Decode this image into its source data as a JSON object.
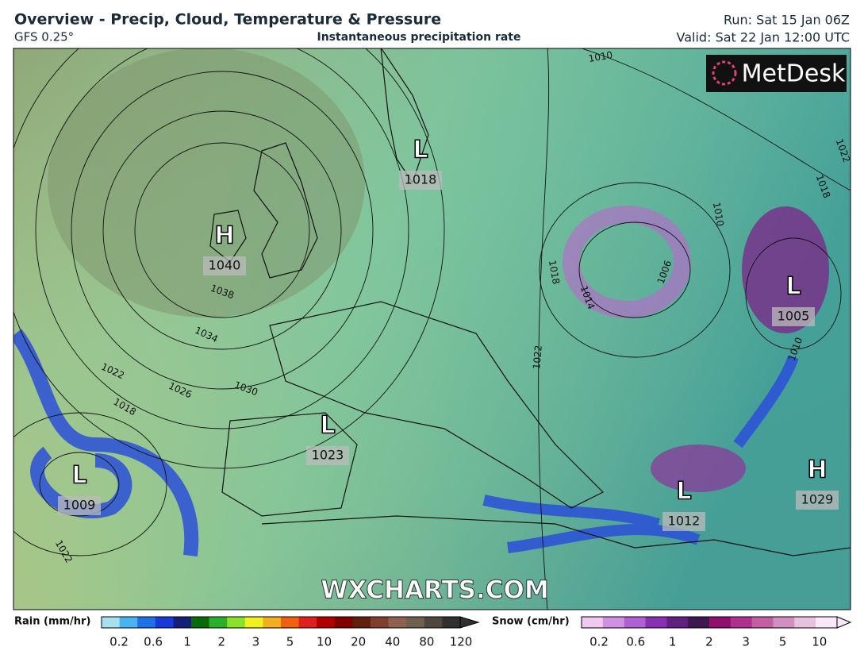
{
  "header": {
    "title": "Overview - Precip, Cloud, Temperature & Pressure",
    "model": "GFS 0.25°",
    "subtitle": "Instantaneous precipitation rate",
    "run": "Run: Sat 15 Jan 06Z",
    "valid": "Valid: Sat 22 Jan 12:00 UTC"
  },
  "map": {
    "logo": "MetDesk",
    "watermark": "WXCHARTS.COM",
    "pressure_centers": [
      {
        "type": "H",
        "value": 1040
      },
      {
        "type": "L",
        "value": 1018
      },
      {
        "type": "L",
        "value": 1005
      },
      {
        "type": "L",
        "value": 1023
      },
      {
        "type": "L",
        "value": 1009
      },
      {
        "type": "L",
        "value": 1012
      },
      {
        "type": "H",
        "value": 1029
      }
    ],
    "isobar_labels": [
      1010,
      1038,
      1034,
      1022,
      1026,
      1030,
      1018,
      1018,
      1014,
      1010,
      1006,
      1022,
      1010,
      1018,
      1022,
      1022
    ]
  },
  "legend": {
    "rain": {
      "title": "Rain (mm/hr)",
      "ticks": [
        "0.2",
        "0.6",
        "1",
        "2",
        "3",
        "5",
        "10",
        "20",
        "40",
        "80",
        "120"
      ]
    },
    "snow": {
      "title": "Snow (cm/hr)",
      "ticks": [
        "0.2",
        "0.6",
        "1",
        "2",
        "3",
        "5",
        "10"
      ]
    }
  }
}
